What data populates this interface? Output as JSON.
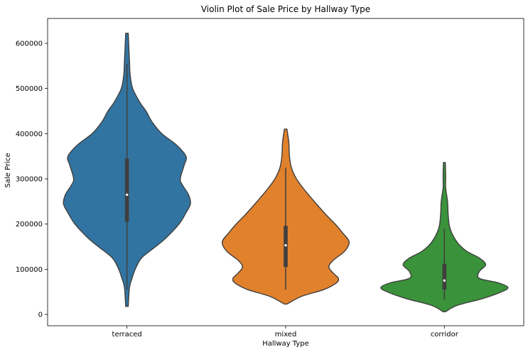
{
  "chart_data": {
    "type": "violin",
    "title": "Violin Plot of Sale Price by Hallway Type",
    "xlabel": "Hallway Type",
    "ylabel": "Sale Price",
    "ylim": [
      -25000,
      655000
    ],
    "yticks": [
      0,
      100000,
      200000,
      300000,
      400000,
      500000,
      600000
    ],
    "categories": [
      "terraced",
      "mixed",
      "corridor"
    ],
    "colors": [
      "#3274a1",
      "#e1812c",
      "#3a923a"
    ],
    "grid": false,
    "series": [
      {
        "category": "terraced",
        "min": 18000,
        "max": 622000,
        "q1": 205000,
        "median": 265000,
        "q3": 345000,
        "whisker_low": 55000,
        "whisker_high": 555000,
        "density": [
          [
            18000,
            0.02
          ],
          [
            60000,
            0.04
          ],
          [
            80000,
            0.08
          ],
          [
            100000,
            0.13
          ],
          [
            125000,
            0.23
          ],
          [
            150000,
            0.45
          ],
          [
            170000,
            0.62
          ],
          [
            200000,
            0.82
          ],
          [
            225000,
            0.93
          ],
          [
            245000,
            1.0
          ],
          [
            265000,
            0.97
          ],
          [
            285000,
            0.88
          ],
          [
            300000,
            0.84
          ],
          [
            330000,
            0.9
          ],
          [
            350000,
            0.93
          ],
          [
            375000,
            0.78
          ],
          [
            400000,
            0.55
          ],
          [
            425000,
            0.4
          ],
          [
            450000,
            0.3
          ],
          [
            470000,
            0.2
          ],
          [
            500000,
            0.09
          ],
          [
            530000,
            0.05
          ],
          [
            560000,
            0.04
          ],
          [
            590000,
            0.03
          ],
          [
            622000,
            0.02
          ]
        ]
      },
      {
        "category": "mixed",
        "min": 23000,
        "max": 410000,
        "q1": 105000,
        "median": 153000,
        "q3": 196000,
        "whisker_low": 55000,
        "whisker_high": 325000,
        "density": [
          [
            23000,
            0.02
          ],
          [
            40000,
            0.25
          ],
          [
            55000,
            0.6
          ],
          [
            70000,
            0.8
          ],
          [
            80000,
            0.83
          ],
          [
            90000,
            0.76
          ],
          [
            105000,
            0.68
          ],
          [
            120000,
            0.75
          ],
          [
            140000,
            0.93
          ],
          [
            160000,
            1.0
          ],
          [
            180000,
            0.9
          ],
          [
            200000,
            0.78
          ],
          [
            220000,
            0.64
          ],
          [
            250000,
            0.45
          ],
          [
            275000,
            0.3
          ],
          [
            300000,
            0.17
          ],
          [
            325000,
            0.09
          ],
          [
            350000,
            0.06
          ],
          [
            380000,
            0.05
          ],
          [
            410000,
            0.02
          ]
        ]
      },
      {
        "category": "corridor",
        "min": 6000,
        "max": 336000,
        "q1": 55000,
        "median": 75000,
        "q3": 112000,
        "whisker_low": 33000,
        "whisker_high": 190000,
        "density": [
          [
            6000,
            0.02
          ],
          [
            20000,
            0.2
          ],
          [
            35000,
            0.6
          ],
          [
            50000,
            0.9
          ],
          [
            60000,
            1.0
          ],
          [
            70000,
            0.85
          ],
          [
            80000,
            0.55
          ],
          [
            95000,
            0.55
          ],
          [
            110000,
            0.65
          ],
          [
            125000,
            0.55
          ],
          [
            140000,
            0.35
          ],
          [
            160000,
            0.2
          ],
          [
            190000,
            0.09
          ],
          [
            220000,
            0.06
          ],
          [
            250000,
            0.05
          ],
          [
            280000,
            0.02
          ],
          [
            305000,
            0.02
          ],
          [
            336000,
            0.015
          ]
        ]
      }
    ]
  }
}
